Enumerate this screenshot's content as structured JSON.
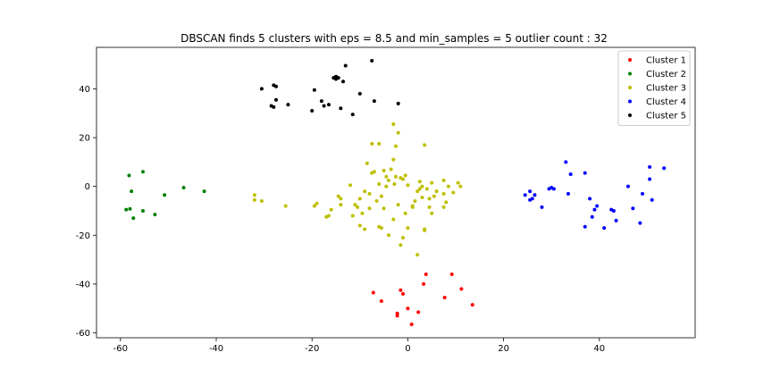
{
  "chart_data": {
    "type": "scatter",
    "title": "DBSCAN finds 5 clusters with eps = 8.5 and min_samples = 5 outlier count : 32",
    "xlabel": "",
    "ylabel": "",
    "xlim": [
      -65,
      60
    ],
    "ylim": [
      -62,
      57
    ],
    "xticks": [
      -60,
      -40,
      -20,
      0,
      20,
      40
    ],
    "yticks": [
      -60,
      -40,
      -20,
      0,
      20,
      40
    ],
    "grid": false,
    "legend_position": "top-right",
    "series": [
      {
        "name": "Cluster 1",
        "color": "#ff0000",
        "points": [
          [
            -7.2,
            -43.5
          ],
          [
            -5.5,
            -47
          ],
          [
            -2.2,
            -52
          ],
          [
            -2.2,
            -53
          ],
          [
            -1.5,
            -42.5
          ],
          [
            -1.0,
            -44
          ],
          [
            0.0,
            -50
          ],
          [
            0.8,
            -56.5
          ],
          [
            2.2,
            -51.5
          ],
          [
            3.3,
            -40
          ],
          [
            3.8,
            -36
          ],
          [
            7.7,
            -45.5
          ],
          [
            9.2,
            -36
          ],
          [
            11.2,
            -42
          ],
          [
            13.5,
            -48.5
          ]
        ]
      },
      {
        "name": "Cluster 2",
        "color": "#008000",
        "points": [
          [
            -58.8,
            -9.5
          ],
          [
            -58.2,
            4.5
          ],
          [
            -58.0,
            -9.2
          ],
          [
            -57.7,
            -2
          ],
          [
            -57.3,
            -13
          ],
          [
            -55.3,
            -10
          ],
          [
            -55.3,
            6
          ],
          [
            -52.8,
            -11.5
          ],
          [
            -50.8,
            -3.5
          ],
          [
            -46.8,
            -0.5
          ],
          [
            -42.5,
            -2
          ]
        ]
      },
      {
        "name": "Cluster 3",
        "color": "#bfbf00",
        "points": [
          [
            -32,
            -3.5
          ],
          [
            -32,
            -5.5
          ],
          [
            -30.5,
            -6
          ],
          [
            -25.5,
            -8
          ],
          [
            -19.5,
            -8
          ],
          [
            -19,
            -7
          ],
          [
            -17,
            -12.5
          ],
          [
            -16.5,
            -12
          ],
          [
            -16,
            -9.5
          ],
          [
            -14.5,
            -4
          ],
          [
            -14,
            -7.5
          ],
          [
            -14,
            -5
          ],
          [
            -12,
            0.5
          ],
          [
            -11.5,
            -12
          ],
          [
            -11,
            -7.5
          ],
          [
            -10,
            -16
          ],
          [
            -10.5,
            -8.5
          ],
          [
            -10,
            -5
          ],
          [
            -9.5,
            -11
          ],
          [
            -9,
            -17.5
          ],
          [
            -9,
            -2
          ],
          [
            -8.5,
            9.5
          ],
          [
            -8,
            -9
          ],
          [
            -8,
            -3
          ],
          [
            -7.5,
            5.5
          ],
          [
            -7.5,
            17.5
          ],
          [
            -7,
            6
          ],
          [
            -6.5,
            -6
          ],
          [
            -6,
            -16.5
          ],
          [
            -6,
            1
          ],
          [
            -6,
            17.5
          ],
          [
            -5.5,
            -17
          ],
          [
            -5.5,
            -4
          ],
          [
            -5,
            -9
          ],
          [
            -5,
            6.5
          ],
          [
            -4.5,
            4
          ],
          [
            -4.5,
            0
          ],
          [
            -4,
            -20
          ],
          [
            -4,
            2.5
          ],
          [
            -3.5,
            7
          ],
          [
            -3,
            -13.5
          ],
          [
            -3,
            11
          ],
          [
            -3,
            25.5
          ],
          [
            -2.8,
            1
          ],
          [
            -2.5,
            4
          ],
          [
            -2.5,
            16.5
          ],
          [
            -2,
            22
          ],
          [
            -2,
            -7.5
          ],
          [
            -1.5,
            3.5
          ],
          [
            -1.5,
            -24
          ],
          [
            -1,
            -21
          ],
          [
            -1,
            3
          ],
          [
            -0.5,
            4.5
          ],
          [
            -0.5,
            -11
          ],
          [
            0,
            -17
          ],
          [
            0,
            0.5
          ],
          [
            1,
            -8
          ],
          [
            1,
            -8.5
          ],
          [
            1.5,
            -6
          ],
          [
            2,
            -2
          ],
          [
            2,
            -28
          ],
          [
            2.5,
            -1
          ],
          [
            2.5,
            2
          ],
          [
            3,
            -4.5
          ],
          [
            3,
            0
          ],
          [
            3.5,
            -18
          ],
          [
            3.5,
            -17.5
          ],
          [
            3.5,
            17
          ],
          [
            4,
            -1
          ],
          [
            4.5,
            -5
          ],
          [
            4.5,
            -8.5
          ],
          [
            5,
            -11
          ],
          [
            5,
            1.5
          ],
          [
            5.5,
            -4
          ],
          [
            6,
            -2
          ],
          [
            7.5,
            2.5
          ],
          [
            7.5,
            -3
          ],
          [
            7.5,
            -8.5
          ],
          [
            8,
            -6.5
          ],
          [
            8.5,
            0
          ],
          [
            9.5,
            -2.5
          ],
          [
            10.5,
            1.5
          ],
          [
            11,
            0
          ]
        ]
      },
      {
        "name": "Cluster 4",
        "color": "#0000ff",
        "points": [
          [
            24.5,
            -3.5
          ],
          [
            25.5,
            -5.5
          ],
          [
            25.5,
            -2
          ],
          [
            26,
            -5
          ],
          [
            26.5,
            -3.5
          ],
          [
            28,
            -8.5
          ],
          [
            29.5,
            -1
          ],
          [
            30,
            -0.5
          ],
          [
            30.5,
            -1
          ],
          [
            33,
            10
          ],
          [
            33.5,
            -3
          ],
          [
            34,
            5
          ],
          [
            37,
            -16.5
          ],
          [
            37,
            5.5
          ],
          [
            38,
            -5
          ],
          [
            38.5,
            -12.5
          ],
          [
            39,
            -9.5
          ],
          [
            39.5,
            -8
          ],
          [
            41,
            -17
          ],
          [
            42.5,
            -9.5
          ],
          [
            43,
            -10
          ],
          [
            43.5,
            -14
          ],
          [
            46,
            0
          ],
          [
            47,
            -9
          ],
          [
            48.5,
            -15
          ],
          [
            49,
            -3
          ],
          [
            50.5,
            8
          ],
          [
            50.5,
            3
          ],
          [
            51,
            -5.5
          ],
          [
            53.5,
            7.5
          ]
        ]
      },
      {
        "name": "Cluster 5",
        "color": "#000000",
        "points": [
          [
            -30.5,
            40
          ],
          [
            -28.5,
            33
          ],
          [
            -28,
            32.5
          ],
          [
            -28,
            41.5
          ],
          [
            -27.5,
            41
          ],
          [
            -27.5,
            35.5
          ],
          [
            -25,
            33.5
          ],
          [
            -20,
            31
          ],
          [
            -19.5,
            39.5
          ],
          [
            -18,
            35
          ],
          [
            -17.5,
            33
          ],
          [
            -16.5,
            33.5
          ],
          [
            -15.5,
            44.5
          ],
          [
            -15,
            45
          ],
          [
            -15,
            44
          ],
          [
            -14.5,
            44.5
          ],
          [
            -14,
            32
          ],
          [
            -13.5,
            43
          ],
          [
            -13,
            49.5
          ],
          [
            -11.5,
            29.5
          ],
          [
            -10,
            38
          ],
          [
            -7.5,
            51.5
          ],
          [
            -7,
            35
          ],
          [
            -2,
            34
          ]
        ]
      }
    ]
  }
}
